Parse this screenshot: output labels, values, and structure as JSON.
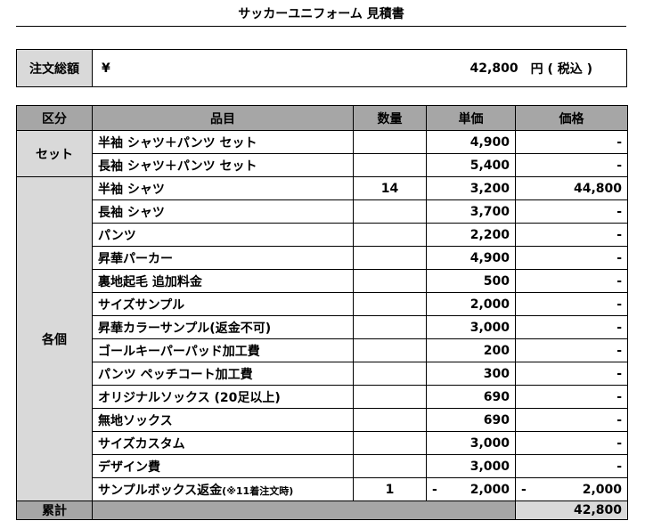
{
  "title": "サッカーユニフォーム 見積書",
  "total": {
    "label": "注文総額",
    "currency": "¥",
    "amount": "42,800",
    "unit": "円 ( 税込 )"
  },
  "table": {
    "header": [
      "区分",
      "品目",
      "数量",
      "単価",
      "価格"
    ],
    "groups": [
      {
        "label": "セット",
        "rows": [
          {
            "item": "半袖 シャツ＋パンツ セット",
            "unit": "4,900",
            "price": "-"
          },
          {
            "item": "長袖 シャツ＋パンツ セット",
            "unit": "5,400",
            "price": "-"
          }
        ]
      },
      {
        "label": "各個",
        "rows": [
          {
            "item": "半袖 シャツ",
            "qty": "14",
            "unit": "3,200",
            "price": "44,800"
          },
          {
            "item": "長袖 シャツ",
            "unit": "3,700",
            "price": "-"
          },
          {
            "item": "パンツ",
            "unit": "2,200",
            "price": "-"
          },
          {
            "item": "昇華パーカー",
            "unit": "4,900",
            "price": "-"
          },
          {
            "item": "裏地起毛 追加料金",
            "unit": "500",
            "price": "-"
          },
          {
            "item": "サイズサンプル",
            "unit": "2,000",
            "price": "-"
          },
          {
            "item": "昇華カラーサンプル(返金不可)",
            "unit": "3,000",
            "price": "-"
          },
          {
            "item": "ゴールキーパーパッド加工費",
            "unit": "200",
            "price": "-"
          },
          {
            "item": "パンツ ペッチコート加工費",
            "unit": "300",
            "price": "-"
          },
          {
            "item": "オリジナルソックス (20足以上)",
            "unit": "690",
            "price": "-"
          },
          {
            "item": "無地ソックス",
            "unit": "690",
            "price": "-"
          },
          {
            "item": "サイズカスタム",
            "unit": "3,000",
            "price": "-"
          },
          {
            "item": "デザイン費",
            "unit": "3,000",
            "price": "-"
          },
          {
            "item": "サンプルボックス返金",
            "item_note": "(※11着注文時)",
            "qty": "1",
            "unit_sign": "-",
            "unit": "2,000",
            "price_sign": "-",
            "price": "2,000"
          }
        ]
      }
    ],
    "footer": {
      "label": "累計",
      "price": "42,800"
    }
  }
}
